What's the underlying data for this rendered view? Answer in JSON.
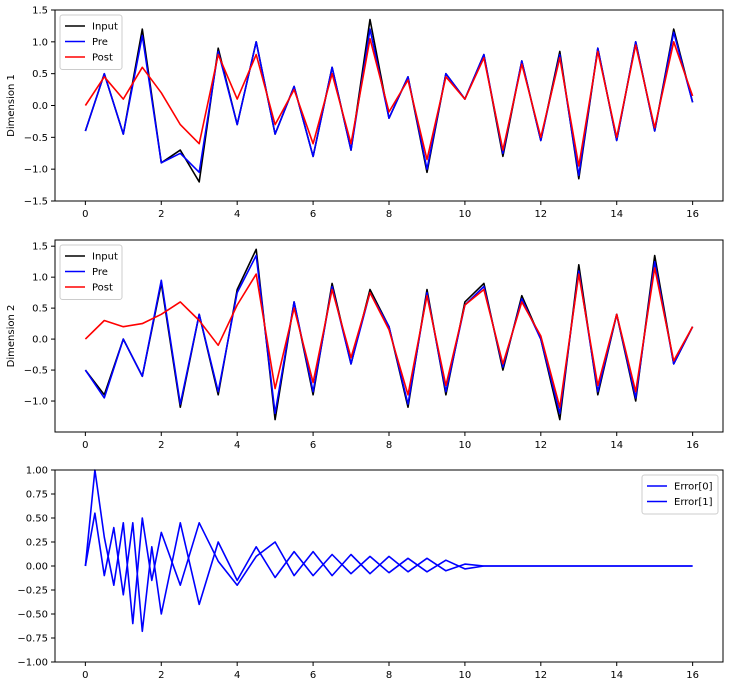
{
  "chart_data": [
    {
      "type": "line",
      "title": "",
      "xlabel": "",
      "ylabel": "Dimension 1",
      "xlim": [
        -0.8,
        16.8
      ],
      "ylim": [
        -1.5,
        1.5
      ],
      "xticks": [
        0,
        2,
        4,
        6,
        8,
        10,
        12,
        14,
        16
      ],
      "yticks": [
        -1.5,
        -1.0,
        -0.5,
        0.0,
        0.5,
        1.0,
        1.5
      ],
      "yticklabels": [
        "−1.5",
        "−1.0",
        "−0.5",
        "0.0",
        "0.5",
        "1.0",
        "1.5"
      ],
      "legend": {
        "position": "upper-left"
      },
      "x": [
        0,
        0.5,
        1,
        1.5,
        2,
        2.5,
        3,
        3.5,
        4,
        4.5,
        5,
        5.5,
        6,
        6.5,
        7,
        7.5,
        8,
        8.5,
        9,
        9.5,
        10,
        10.5,
        11,
        11.5,
        12,
        12.5,
        13,
        13.5,
        14,
        14.5,
        15,
        15.5,
        16
      ],
      "series": [
        {
          "name": "Input",
          "color": "#000000",
          "values": [
            -0.4,
            0.5,
            -0.45,
            1.2,
            -0.9,
            -0.7,
            -1.2,
            0.9,
            -0.3,
            1.0,
            -0.45,
            0.3,
            -0.8,
            0.6,
            -0.7,
            1.35,
            -0.2,
            0.45,
            -1.05,
            0.5,
            0.1,
            0.8,
            -0.8,
            0.7,
            -0.55,
            0.85,
            -1.15,
            0.9,
            -0.55,
            1.0,
            -0.4,
            1.2,
            0.05
          ]
        },
        {
          "name": "Pre",
          "color": "#0000ff",
          "values": [
            -0.4,
            0.5,
            -0.45,
            1.1,
            -0.9,
            -0.75,
            -1.05,
            0.85,
            -0.3,
            1.0,
            -0.45,
            0.3,
            -0.8,
            0.6,
            -0.7,
            1.2,
            -0.2,
            0.45,
            -1.0,
            0.5,
            0.1,
            0.8,
            -0.75,
            0.7,
            -0.55,
            0.8,
            -1.1,
            0.9,
            -0.55,
            1.0,
            -0.4,
            1.15,
            0.05
          ]
        },
        {
          "name": "Post",
          "color": "#ff0000",
          "values": [
            0.0,
            0.45,
            0.1,
            0.6,
            0.2,
            -0.3,
            -0.6,
            0.8,
            0.1,
            0.8,
            -0.3,
            0.25,
            -0.6,
            0.5,
            -0.6,
            1.05,
            -0.1,
            0.4,
            -0.85,
            0.45,
            0.1,
            0.75,
            -0.7,
            0.65,
            -0.5,
            0.75,
            -0.95,
            0.85,
            -0.5,
            0.95,
            -0.35,
            1.0,
            0.15
          ]
        }
      ]
    },
    {
      "type": "line",
      "title": "",
      "xlabel": "",
      "ylabel": "Dimension 2",
      "xlim": [
        -0.8,
        16.8
      ],
      "ylim": [
        -1.5,
        1.6
      ],
      "xticks": [
        0,
        2,
        4,
        6,
        8,
        10,
        12,
        14,
        16
      ],
      "yticks": [
        -1.0,
        -0.5,
        0.0,
        0.5,
        1.0,
        1.5
      ],
      "yticklabels": [
        "−1.0",
        "−0.5",
        "0.0",
        "0.5",
        "1.0",
        "1.5"
      ],
      "legend": {
        "position": "upper-left"
      },
      "x": [
        0,
        0.5,
        1,
        1.5,
        2,
        2.5,
        3,
        3.5,
        4,
        4.5,
        5,
        5.5,
        6,
        6.5,
        7,
        7.5,
        8,
        8.5,
        9,
        9.5,
        10,
        10.5,
        11,
        11.5,
        12,
        12.5,
        13,
        13.5,
        14,
        14.5,
        15,
        15.5,
        16
      ],
      "series": [
        {
          "name": "Input",
          "color": "#000000",
          "values": [
            -0.5,
            -0.9,
            0.0,
            -0.6,
            0.9,
            -1.1,
            0.4,
            -0.9,
            0.8,
            1.45,
            -1.3,
            0.6,
            -0.9,
            0.9,
            -0.4,
            0.8,
            0.2,
            -1.1,
            0.8,
            -0.9,
            0.6,
            0.9,
            -0.5,
            0.7,
            0.0,
            -1.3,
            1.2,
            -0.9,
            0.4,
            -1.0,
            1.35,
            -0.4,
            0.2
          ]
        },
        {
          "name": "Pre",
          "color": "#0000ff",
          "values": [
            -0.5,
            -0.95,
            0.0,
            -0.6,
            0.95,
            -1.05,
            0.4,
            -0.85,
            0.75,
            1.35,
            -1.2,
            0.6,
            -0.85,
            0.85,
            -0.4,
            0.75,
            0.2,
            -1.05,
            0.75,
            -0.85,
            0.55,
            0.85,
            -0.45,
            0.65,
            0.0,
            -1.2,
            1.1,
            -0.85,
            0.4,
            -0.95,
            1.25,
            -0.4,
            0.2
          ]
        },
        {
          "name": "Post",
          "color": "#ff0000",
          "values": [
            0.0,
            0.3,
            0.2,
            0.25,
            0.4,
            0.6,
            0.3,
            -0.1,
            0.55,
            1.05,
            -0.8,
            0.5,
            -0.7,
            0.8,
            -0.3,
            0.75,
            0.15,
            -0.9,
            0.7,
            -0.75,
            0.55,
            0.8,
            -0.4,
            0.6,
            0.05,
            -1.1,
            1.05,
            -0.75,
            0.4,
            -0.85,
            1.15,
            -0.35,
            0.2
          ]
        }
      ]
    },
    {
      "type": "line",
      "title": "",
      "xlabel": "",
      "ylabel": "",
      "xlim": [
        -0.8,
        16.8
      ],
      "ylim": [
        -1.0,
        1.0
      ],
      "xticks": [
        0,
        2,
        4,
        6,
        8,
        10,
        12,
        14,
        16
      ],
      "yticks": [
        -1.0,
        -0.75,
        -0.5,
        -0.25,
        0.0,
        0.25,
        0.5,
        0.75,
        1.0
      ],
      "yticklabels": [
        "−1.00",
        "−0.75",
        "−0.50",
        "−0.25",
        "0.00",
        "0.25",
        "0.50",
        "0.75",
        "1.00"
      ],
      "legend": {
        "position": "upper-right"
      },
      "x": [
        0,
        0.25,
        0.5,
        0.75,
        1,
        1.25,
        1.5,
        1.75,
        2,
        2.5,
        3,
        3.5,
        4,
        4.5,
        5,
        5.5,
        6,
        6.5,
        7,
        7.5,
        8,
        8.5,
        9,
        9.5,
        10,
        10.5,
        11,
        12,
        13,
        14,
        15,
        16
      ],
      "series": [
        {
          "name": "Error[0]",
          "color": "#0000ff",
          "values": [
            0.0,
            1.0,
            0.3,
            -0.2,
            0.45,
            -0.6,
            0.5,
            -0.15,
            0.35,
            -0.2,
            0.45,
            0.05,
            -0.2,
            0.1,
            0.25,
            -0.1,
            0.15,
            -0.1,
            0.12,
            -0.08,
            0.1,
            -0.06,
            0.08,
            -0.05,
            0.02,
            0.0,
            0.0,
            0.0,
            0.0,
            0.0,
            0.0,
            0.0
          ]
        },
        {
          "name": "Error[1]",
          "color": "#0000ff",
          "values": [
            0.0,
            0.55,
            -0.1,
            0.4,
            -0.3,
            0.45,
            -0.68,
            0.2,
            -0.5,
            0.45,
            -0.4,
            0.25,
            -0.15,
            0.2,
            -0.12,
            0.15,
            -0.1,
            0.12,
            -0.08,
            0.1,
            -0.07,
            0.08,
            -0.06,
            0.06,
            -0.03,
            0.0,
            0.0,
            0.0,
            0.0,
            0.0,
            0.0,
            0.0
          ]
        }
      ]
    }
  ]
}
